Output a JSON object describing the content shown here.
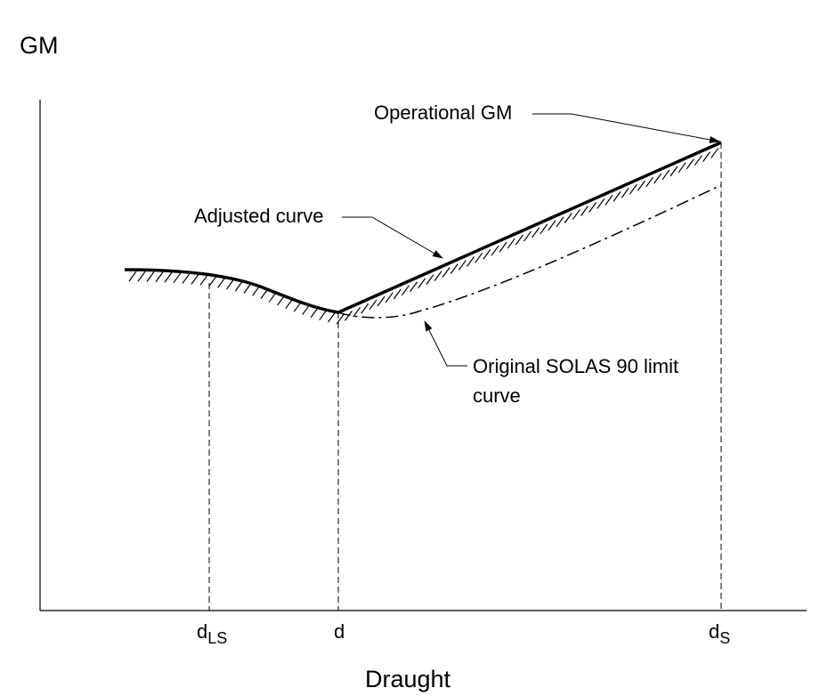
{
  "chart_data": {
    "type": "line",
    "title": "",
    "ylabel": "GM",
    "xlabel": "Draught",
    "x_ticks": [
      {
        "name": "d_LS",
        "base": "d",
        "sub": "LS"
      },
      {
        "name": "d",
        "base": "d",
        "sub": ""
      },
      {
        "name": "d_S",
        "base": "d",
        "sub": "S"
      }
    ],
    "grid": false,
    "series": [
      {
        "name": "Adjusted curve",
        "style": "solid-bold-hatched"
      },
      {
        "name": "Original SOLAS 90 limit curve",
        "style": "dash-dot"
      }
    ],
    "annotations": {
      "operational_gm": "Operational GM",
      "adjusted_curve": "Adjusted curve",
      "solas_line1": "Original SOLAS 90 limit",
      "solas_line2": "curve"
    }
  }
}
